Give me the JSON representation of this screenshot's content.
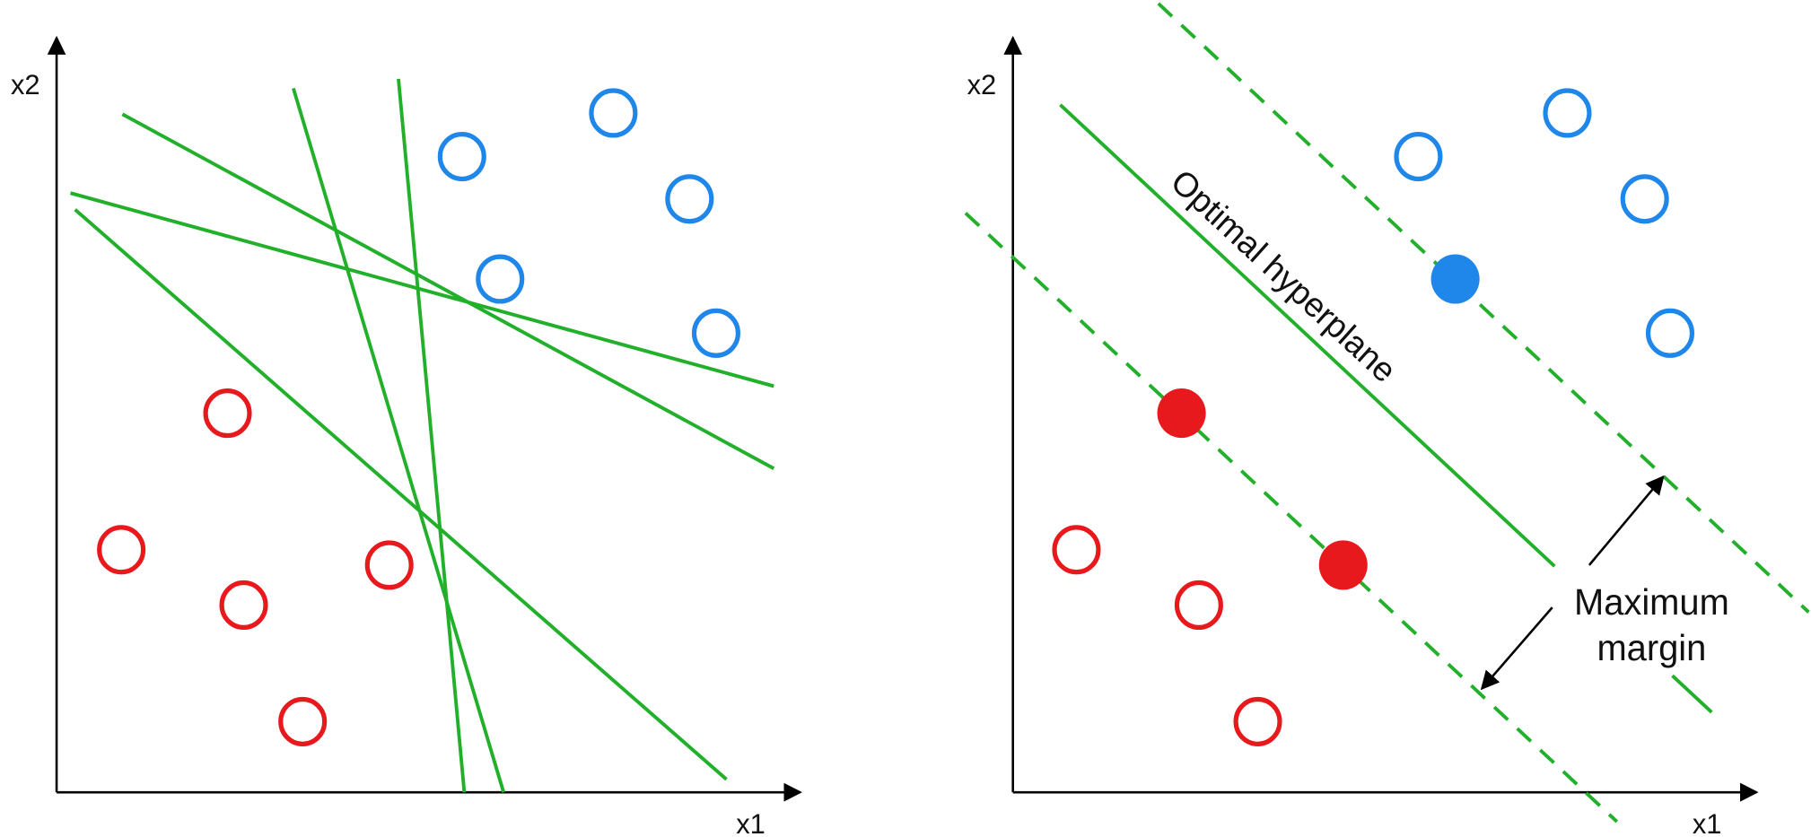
{
  "left_panel": {
    "y_axis_label": "x2",
    "x_axis_label": "x1"
  },
  "right_panel": {
    "y_axis_label": "x2",
    "x_axis_label": "x1",
    "hyperplane_label": "Optimal hyperplane",
    "margin_label": [
      "Maximum",
      "margin"
    ]
  }
}
